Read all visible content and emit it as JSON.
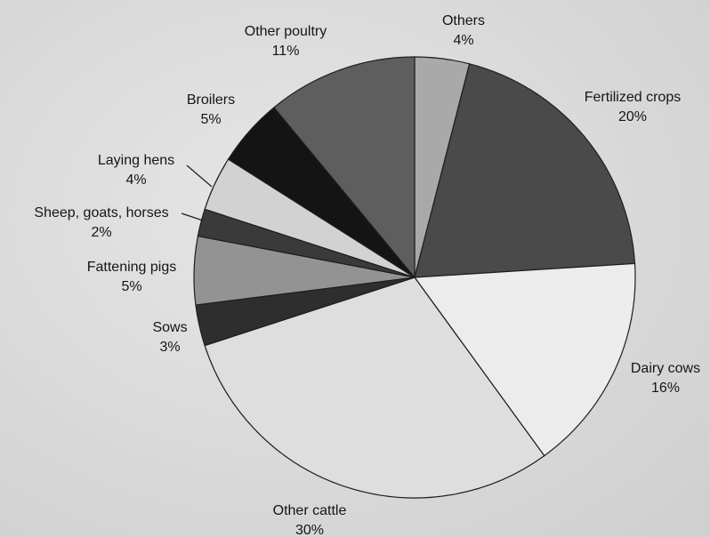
{
  "chart_data": {
    "type": "pie",
    "start": "12 o'clock",
    "direction": "clockwise",
    "slices": [
      {
        "label": "Others",
        "value": 4,
        "value_label": "4%",
        "color": "#a9a9a9"
      },
      {
        "label": "Fertilized crops",
        "value": 20,
        "value_label": "20%",
        "color": "#4a4a4a"
      },
      {
        "label": "Dairy cows",
        "value": 16,
        "value_label": "16%",
        "color": "#ececec"
      },
      {
        "label": "Other cattle",
        "value": 30,
        "value_label": "30%",
        "color": "#dedede"
      },
      {
        "label": "Sows",
        "value": 3,
        "value_label": "3%",
        "color": "#2e2e2e"
      },
      {
        "label": "Fattening pigs",
        "value": 5,
        "value_label": "5%",
        "color": "#939393"
      },
      {
        "label": "Sheep, goats, horses",
        "value": 2,
        "value_label": "2%",
        "color": "#3a3a3a"
      },
      {
        "label": "Laying hens",
        "value": 4,
        "value_label": "4%",
        "color": "#d2d2d2"
      },
      {
        "label": "Broilers",
        "value": 5,
        "value_label": "5%",
        "color": "#141414"
      },
      {
        "label": "Other poultry",
        "value": 11,
        "value_label": "11%",
        "color": "#5e5e5e"
      }
    ]
  }
}
